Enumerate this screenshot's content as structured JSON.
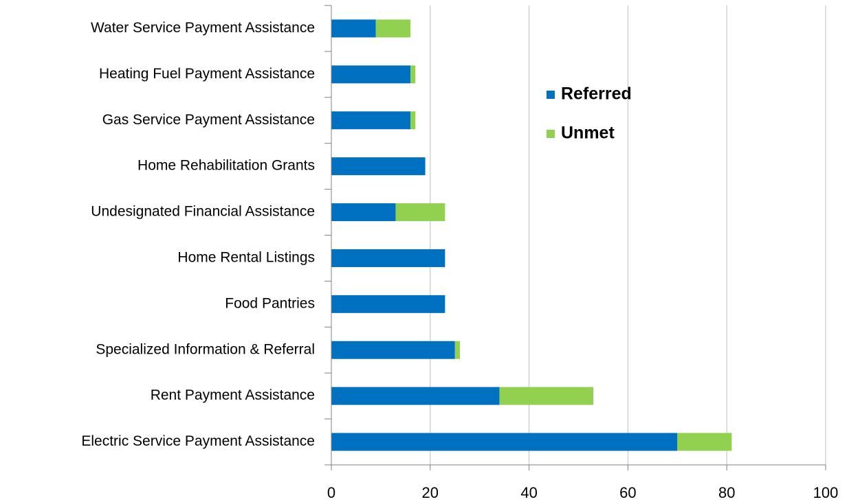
{
  "chart_data": {
    "type": "stacked_barh",
    "categories": [
      "Water Service Payment Assistance",
      "Heating Fuel Payment Assistance",
      "Gas Service Payment Assistance",
      "Home Rehabilitation Grants",
      "Undesignated Financial Assistance",
      "Home Rental Listings",
      "Food Pantries",
      "Specialized Information & Referral",
      "Rent Payment Assistance",
      "Electric Service Payment Assistance"
    ],
    "series": [
      {
        "name": "Referred",
        "color": "#0070c0",
        "values": [
          9,
          16,
          16,
          19,
          13,
          23,
          23,
          25,
          34,
          70
        ]
      },
      {
        "name": "Unmet",
        "color": "#92d050",
        "values": [
          7,
          1,
          1,
          0,
          10,
          0,
          0,
          1,
          19,
          11
        ]
      }
    ],
    "xlim": [
      0,
      100
    ],
    "xticks": [
      0,
      20,
      40,
      60,
      80,
      100
    ],
    "grid": true
  }
}
